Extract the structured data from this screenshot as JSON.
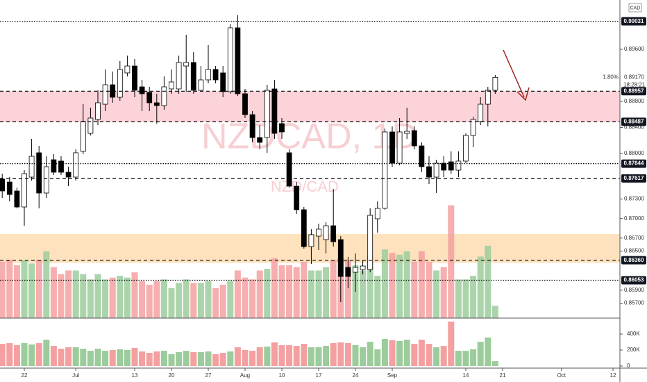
{
  "chart_data": {
    "type": "candlestick",
    "watermark": "NZDCAD, 1D",
    "subtitle_watermark": "NZD/CAD",
    "currency": "CAD",
    "categories": [
      null,
      null,
      null,
      "22",
      null,
      null,
      null,
      null,
      null,
      null,
      "Jul",
      null,
      null,
      null,
      null,
      null,
      null,
      null,
      "13",
      null,
      null,
      null,
      null,
      "20",
      null,
      null,
      null,
      null,
      "27",
      null,
      null,
      null,
      null,
      "Aug",
      null,
      null,
      null,
      null,
      "10",
      null,
      null,
      null,
      null,
      "17",
      null,
      null,
      null,
      null,
      "24",
      null,
      null,
      null,
      null,
      "Sep",
      null,
      null,
      null,
      null,
      null,
      null,
      null,
      null,
      null,
      "14",
      null,
      null,
      null,
      null,
      "21",
      null,
      null,
      null,
      null,
      null,
      null,
      null,
      "Oct",
      null,
      null,
      null,
      null,
      null,
      null,
      "12"
    ],
    "open": [
      0.87605,
      0.87562,
      0.87424,
      0.87178,
      0.87637,
      0.88011,
      0.87392,
      0.87904,
      0.87883,
      0.87712,
      0.87637,
      0.88032,
      0.88309,
      0.88523,
      0.88757,
      0.89056,
      0.88864,
      0.89238,
      0.89344,
      0.89024,
      0.88939,
      0.88779,
      0.88736,
      0.88992,
      0.88992,
      0.89344,
      0.89398,
      0.88971,
      0.89131,
      0.89291,
      0.89238,
      0.8895,
      0.89931,
      0.88918,
      0.88597,
      0.88245,
      0.88245,
      0.88992,
      0.88459,
      0.88011,
      0.87498,
      0.87136,
      0.8657,
      0.8673,
      0.86677,
      0.8689,
      0.86677,
      0.8625,
      0.86175,
      0.86218,
      0.86218,
      0.86997,
      0.87157,
      0.88331,
      0.87851,
      0.88309,
      0.88352,
      0.88117,
      0.87797,
      0.87637,
      0.87851,
      0.87872,
      0.87744,
      0.87883,
      0.88277,
      0.88491,
      0.88757,
      0.88971,
      null,
      null,
      null,
      null,
      null,
      null,
      null,
      null,
      null,
      null,
      null,
      null,
      null,
      null,
      null,
      null
    ],
    "high": [
      0.8769,
      0.87637,
      0.87477,
      0.87744,
      0.88224,
      0.88117,
      0.87957,
      0.87989,
      0.87957,
      0.87797,
      0.88064,
      0.88757,
      0.88704,
      0.88971,
      0.89291,
      0.89259,
      0.89419,
      0.89504,
      0.89451,
      0.89131,
      0.89024,
      0.88918,
      0.89184,
      0.89291,
      0.89504,
      0.89824,
      0.89558,
      0.89344,
      0.89664,
      0.89344,
      0.89344,
      0.89985,
      0.90123,
      0.88992,
      0.88651,
      0.88437,
      0.89056,
      0.89131,
      0.88544,
      0.88064,
      0.87562,
      0.87178,
      0.86837,
      0.86922,
      0.86944,
      0.87456,
      0.8673,
      0.8641,
      0.86463,
      0.86357,
      0.87157,
      0.87264,
      0.88384,
      0.88416,
      0.88544,
      0.88704,
      0.88416,
      0.88171,
      0.87957,
      0.87904,
      0.87957,
      0.88032,
      0.88032,
      0.88309,
      0.88565,
      0.88864,
      0.89024,
      0.89206,
      null,
      null,
      null,
      null,
      null,
      null,
      null,
      null,
      null,
      null,
      null,
      null,
      null,
      null,
      null,
      null
    ],
    "low": [
      0.87317,
      0.87264,
      0.87157,
      0.8689,
      0.87584,
      0.87157,
      0.87317,
      0.87669,
      0.87669,
      0.87498,
      0.87584,
      0.87989,
      0.88277,
      0.88437,
      0.88651,
      0.88779,
      0.88811,
      0.89184,
      0.88864,
      0.88651,
      0.88651,
      0.88459,
      0.88672,
      0.88918,
      0.88918,
      0.8895,
      0.88918,
      0.88971,
      0.89078,
      0.89078,
      0.88864,
      0.88918,
      0.88886,
      0.88544,
      0.88171,
      0.88064,
      0.88011,
      0.88224,
      0.88224,
      0.87477,
      0.87072,
      0.86538,
      0.86303,
      0.86517,
      0.86463,
      0.8657,
      0.85717,
      0.8593,
      0.85877,
      0.86143,
      0.86175,
      0.86784,
      0.87136,
      0.87797,
      0.87819,
      0.88224,
      0.88064,
      0.87712,
      0.8753,
      0.87392,
      0.87637,
      0.8769,
      0.87637,
      0.87851,
      0.88096,
      0.88437,
      0.88416,
      0.88918,
      null,
      null,
      null,
      null,
      null,
      null,
      null,
      null,
      null,
      null,
      null,
      null,
      null,
      null,
      null,
      null
    ],
    "close": [
      0.87424,
      0.8737,
      0.87178,
      0.8769,
      0.87957,
      0.87392,
      0.87797,
      0.87712,
      0.87712,
      0.87637,
      0.88011,
      0.88491,
      0.88544,
      0.88779,
      0.89056,
      0.88864,
      0.89291,
      0.89344,
      0.88971,
      0.88918,
      0.88779,
      0.88736,
      0.89024,
      0.89099,
      0.89398,
      0.89398,
      0.88971,
      0.89131,
      0.89291,
      0.89131,
      0.8895,
      0.89931,
      0.88918,
      0.88597,
      0.88245,
      0.88171,
      0.88971,
      0.88309,
      0.88331,
      0.87498,
      0.87136,
      0.8657,
      0.86752,
      0.86837,
      0.8689,
      0.86645,
      0.86111,
      0.86111,
      0.8625,
      0.86271,
      0.8705,
      0.87157,
      0.88331,
      0.87851,
      0.88331,
      0.88341,
      0.88117,
      0.87797,
      0.87637,
      0.87851,
      0.87744,
      0.87744,
      0.87883,
      0.88277,
      0.88523,
      0.88757,
      0.88971,
      0.8917,
      null,
      null,
      null,
      null,
      null,
      null,
      null,
      null,
      null,
      null,
      null,
      null,
      null,
      null,
      null,
      null
    ],
    "volume": [
      278000,
      287000,
      261000,
      287000,
      270000,
      287000,
      330000,
      252000,
      217000,
      235000,
      235000,
      217000,
      191000,
      217000,
      191000,
      200000,
      209000,
      200000,
      226000,
      183000,
      165000,
      183000,
      191000,
      148000,
      174000,
      191000,
      174000,
      174000,
      183000,
      148000,
      165000,
      183000,
      235000,
      200000,
      191000,
      235000,
      243000,
      296000,
      261000,
      261000,
      252000,
      278000,
      235000,
      235000,
      252000,
      287000,
      296000,
      287000,
      261000,
      235000,
      304000,
      209000,
      339000,
      322000,
      313000,
      330000,
      278000,
      330000,
      278000,
      235000,
      252000,
      557000,
      191000,
      191000,
      209000,
      304000,
      357000,
      61000,
      null,
      null,
      null,
      null,
      null,
      null,
      null,
      null,
      null,
      null,
      null,
      null,
      null,
      null,
      null,
      null
    ],
    "ylim": [
      0.85471,
      0.90358
    ],
    "yticks": [
      {
        "value": 0.896,
        "label": "0.89600"
      },
      {
        "value": 0.888,
        "label": "0.88800"
      },
      {
        "value": 0.884,
        "label": "0.88400"
      },
      {
        "value": 0.88,
        "label": "0.88000"
      },
      {
        "value": 0.873,
        "label": "0.87300"
      },
      {
        "value": 0.87,
        "label": "0.87000"
      },
      {
        "value": 0.867,
        "label": "0.86700"
      },
      {
        "value": 0.865,
        "label": "0.86500"
      },
      {
        "value": 0.859,
        "label": "0.85900"
      },
      {
        "value": 0.857,
        "label": "0.85700"
      }
    ],
    "volume_ylim": [
      0,
      583000
    ],
    "volume_yticks": [
      0,
      {
        "value": 200000,
        "label": "200K"
      },
      {
        "value": 400000,
        "label": "400K"
      }
    ],
    "levels": [
      {
        "value": 0.90031,
        "label": "0.90031",
        "style": "dotted"
      },
      {
        "value": 0.88957,
        "label": "0.88957",
        "style": "dashed"
      },
      {
        "value": 0.88487,
        "label": "0.88487",
        "style": "dashed"
      },
      {
        "value": 0.87844,
        "label": "0.87844",
        "style": "dotted"
      },
      {
        "value": 0.87617,
        "label": "0.87617",
        "style": "dashed"
      },
      {
        "value": 0.8636,
        "label": "0.86360",
        "style": "dashed"
      },
      {
        "value": 0.86053,
        "label": "0.86053",
        "style": "dotted"
      }
    ],
    "zones": [
      {
        "from": 0.88487,
        "to": 0.88957,
        "color": "#fcd3d9"
      },
      {
        "from": 0.8632,
        "to": 0.86762,
        "color": "#fde2bd"
      }
    ],
    "last_price": {
      "value": 0.8917,
      "label": "0.89170",
      "change": "1.80%",
      "countdown": "18:28:21"
    },
    "up_color": "#ffffff",
    "down_color": "#000000",
    "volume_up_color": "#9ccc9c",
    "volume_down_color": "#f4a0a0"
  }
}
